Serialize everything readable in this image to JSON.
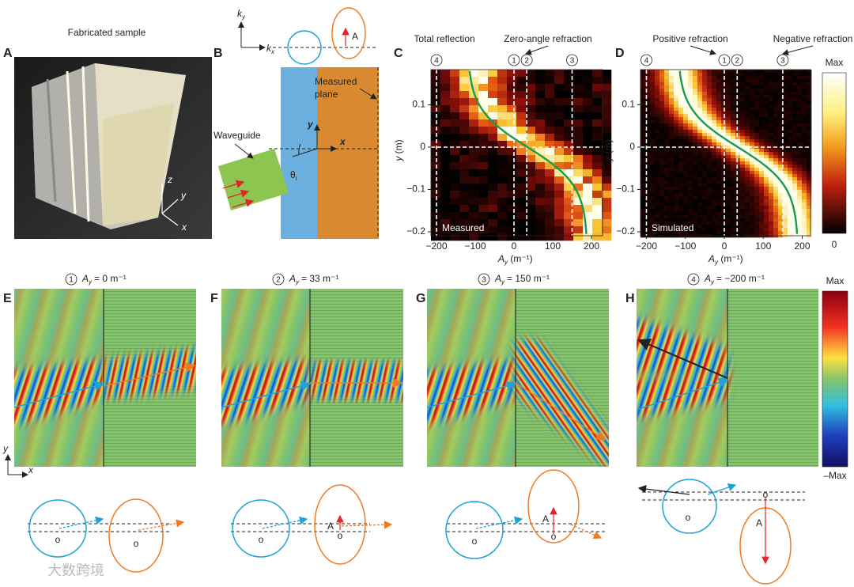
{
  "watermark": "大数跨境",
  "panel_a": {
    "label": "A",
    "title": "Fabricated sample",
    "axis_z": "z",
    "axis_y": "y",
    "axis_x": "x"
  },
  "panel_b": {
    "label": "B",
    "kx": {
      "main": "k",
      "sub": "x"
    },
    "ky": {
      "main": "k",
      "sub": "y"
    },
    "vector": "A",
    "measured_plane": [
      "Measured",
      "plane"
    ],
    "waveguide": "Waveguide",
    "axis_y": "y",
    "axis_x": "x",
    "theta": {
      "main": "θ",
      "sub": "i"
    }
  },
  "panel_c": {
    "label": "C",
    "annotations": [
      "Total reflection",
      "Zero-angle refraction"
    ],
    "markers": [
      "4",
      "1",
      "2",
      "3"
    ],
    "y_label": "y",
    "y_unit": " (m)",
    "x_label": {
      "main": "A",
      "sub": "y",
      "unit": " (m⁻¹)"
    },
    "yticks": [
      "0.1",
      "0",
      "−0.1",
      "−0.2"
    ],
    "xticks": [
      "−200",
      "−100",
      "0",
      "100",
      "200"
    ],
    "note": "Measured"
  },
  "panel_d": {
    "label": "D",
    "annotations": [
      "Positive refraction",
      "Negative refraction"
    ],
    "markers": [
      "4",
      "1",
      "2",
      "3"
    ],
    "y_label": "y",
    "y_unit": " (m)",
    "x_label": {
      "main": "A",
      "sub": "y",
      "unit": " (m⁻¹)"
    },
    "yticks": [
      "0.1",
      "0",
      "−0.1",
      "−0.2"
    ],
    "xticks": [
      "−200",
      "−100",
      "0",
      "100",
      "200"
    ],
    "note": "Simulated",
    "colorbar": [
      "Max",
      "0"
    ]
  },
  "field_panels": [
    {
      "label": "E",
      "marker": "1",
      "symbol": "A",
      "sub": "y",
      "value": "= 0 m⁻¹",
      "diagram": [
        "o",
        "o"
      ]
    },
    {
      "label": "F",
      "marker": "2",
      "symbol": "A",
      "sub": "y",
      "value": "= 33 m⁻¹",
      "diagram": [
        "o",
        "A",
        "o"
      ]
    },
    {
      "label": "G",
      "marker": "3",
      "symbol": "A",
      "sub": "y",
      "value": "= 150 m⁻¹",
      "diagram": [
        "o",
        "A",
        "o"
      ]
    },
    {
      "label": "H",
      "marker": "4",
      "symbol": "A",
      "sub": "y",
      "value": "= −200 m⁻¹",
      "diagram": [
        "o",
        "o",
        "A"
      ]
    }
  ],
  "field_colorbar": [
    "Max",
    "–Max"
  ],
  "field_axes": {
    "y": "y",
    "x": "x"
  }
}
